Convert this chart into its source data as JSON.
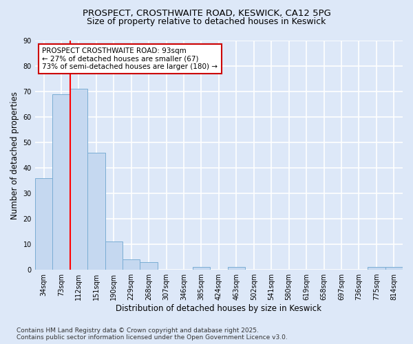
{
  "title1": "PROSPECT, CROSTHWAITE ROAD, KESWICK, CA12 5PG",
  "title2": "Size of property relative to detached houses in Keswick",
  "xlabel": "Distribution of detached houses by size in Keswick",
  "ylabel": "Number of detached properties",
  "bin_labels": [
    "34sqm",
    "73sqm",
    "112sqm",
    "151sqm",
    "190sqm",
    "229sqm",
    "268sqm",
    "307sqm",
    "346sqm",
    "385sqm",
    "424sqm",
    "463sqm",
    "502sqm",
    "541sqm",
    "580sqm",
    "619sqm",
    "658sqm",
    "697sqm",
    "736sqm",
    "775sqm",
    "814sqm"
  ],
  "bar_heights": [
    36,
    69,
    71,
    46,
    11,
    4,
    3,
    0,
    0,
    1,
    0,
    1,
    0,
    0,
    0,
    0,
    0,
    0,
    0,
    1,
    1
  ],
  "bar_color": "#c5d8f0",
  "bar_edge_color": "#7aadd4",
  "red_line_x": 1.5,
  "annotation_text": "PROSPECT CROSTHWAITE ROAD: 93sqm\n← 27% of detached houses are smaller (67)\n73% of semi-detached houses are larger (180) →",
  "annotation_box_color": "#ffffff",
  "annotation_box_edge": "#cc0000",
  "footnote": "Contains HM Land Registry data © Crown copyright and database right 2025.\nContains public sector information licensed under the Open Government Licence v3.0.",
  "ylim": [
    0,
    90
  ],
  "yticks": [
    0,
    10,
    20,
    30,
    40,
    50,
    60,
    70,
    80,
    90
  ],
  "background_color": "#dde8f8",
  "plot_bg_color": "#dde8f8",
  "grid_color": "#ffffff",
  "title_fontsize": 9.5,
  "subtitle_fontsize": 9,
  "axis_label_fontsize": 8.5,
  "tick_fontsize": 7,
  "annotation_fontsize": 7.5,
  "footnote_fontsize": 6.5
}
